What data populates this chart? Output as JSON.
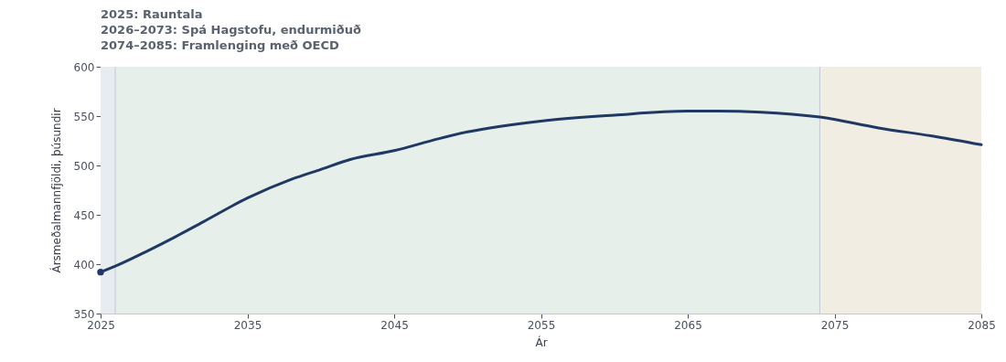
{
  "chart_data": {
    "type": "line",
    "annotations": [
      "2025: Rauntala",
      "2026–2073: Spá Hagstofu, endurmiðuð",
      "2074–2085: Framlenging með OECD"
    ],
    "xlabel": "Ár",
    "ylabel": "Ársmeðalmannfjöldi, þúsundir",
    "xlim": [
      2025,
      2085
    ],
    "xticks": [
      2025,
      2035,
      2045,
      2055,
      2065,
      2075,
      2085
    ],
    "ylim": [
      350,
      600
    ],
    "yticks": [
      350,
      400,
      450,
      500,
      550,
      600
    ],
    "grid": "y",
    "series": [
      {
        "color": "#1f3864",
        "x": [
          2025,
          2026,
          2028,
          2030,
          2032,
          2035,
          2038,
          2040,
          2042,
          2045,
          2048,
          2050,
          2055,
          2060,
          2065,
          2067,
          2070,
          2074,
          2078,
          2082,
          2085
        ],
        "values": [
          392,
          398,
          412,
          427,
          443,
          467,
          486,
          496,
          506,
          515,
          527,
          534,
          545,
          551,
          555,
          555,
          554,
          549,
          538,
          529,
          521
        ]
      },
      {
        "type": "scatter",
        "color": "#1f3864",
        "x": [
          2025
        ],
        "values": [
          392
        ]
      }
    ],
    "bands": [
      {
        "axis": "x",
        "from": 2025,
        "to": 2026,
        "color": "#e8ebf0"
      },
      {
        "axis": "x",
        "from": 2026,
        "to": 2074,
        "color": "#e6efea"
      },
      {
        "axis": "x",
        "from": 2074,
        "to": 2085,
        "color": "#f2ede3"
      }
    ],
    "ref_lines": [
      {
        "axis": "x",
        "value": 2026,
        "color": "#c3c9d6"
      },
      {
        "axis": "x",
        "value": 2074,
        "color": "#c3c9d6"
      }
    ]
  }
}
